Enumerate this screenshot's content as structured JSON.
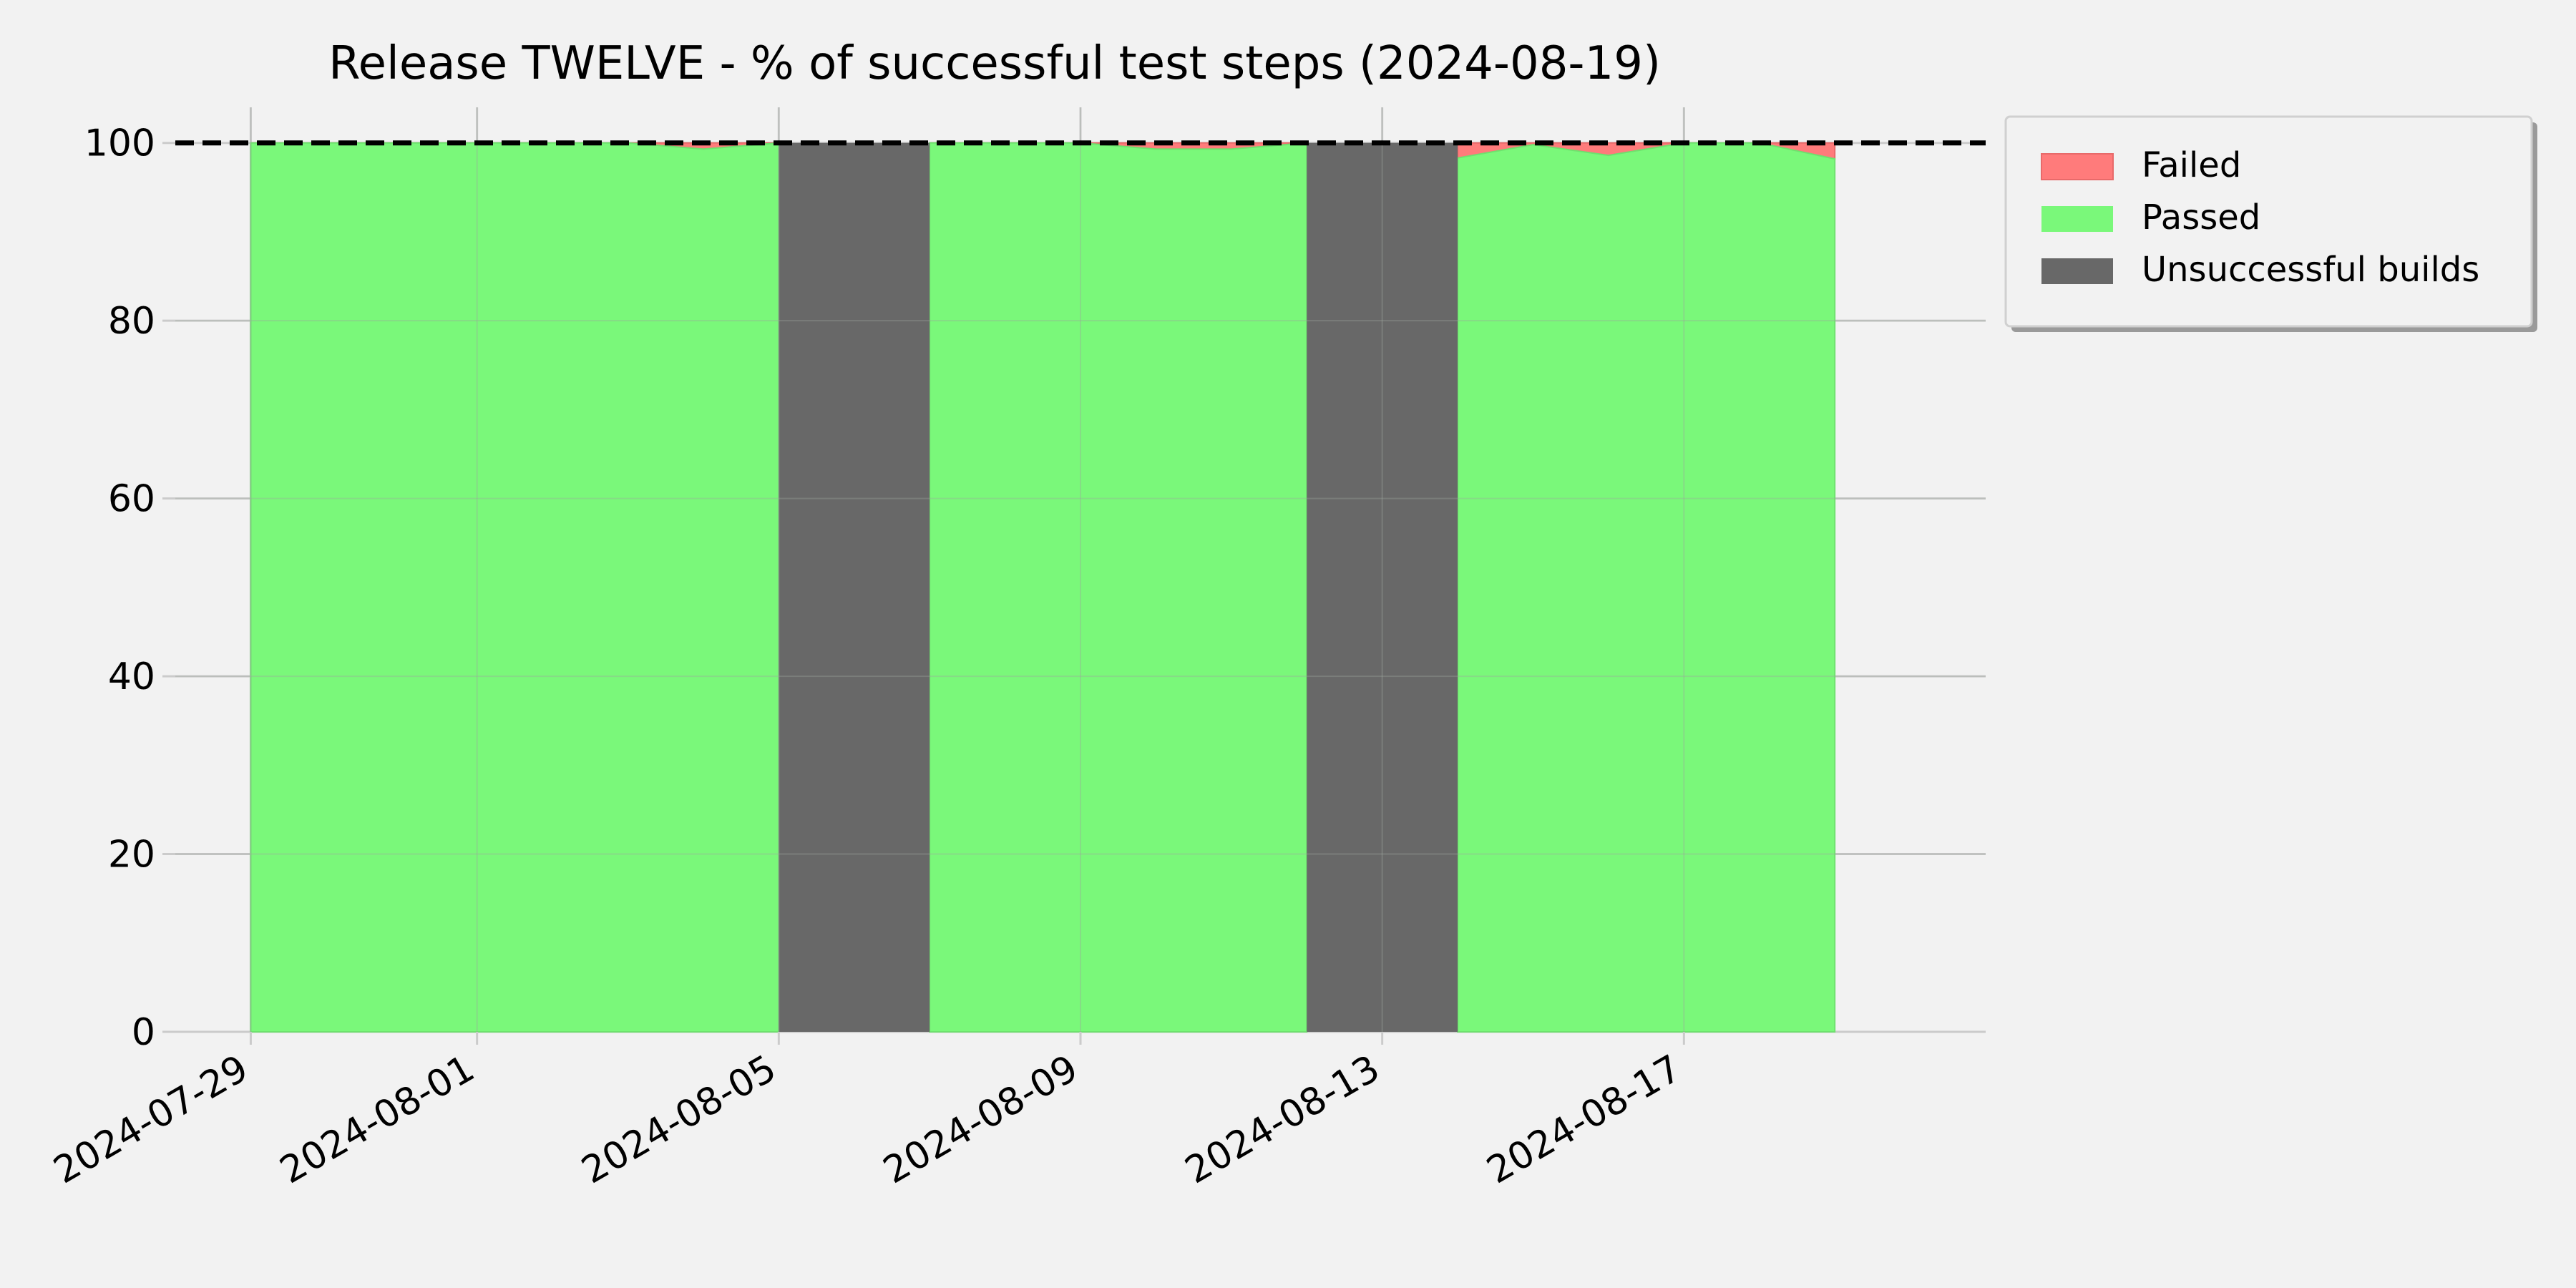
{
  "chart_data": {
    "type": "area",
    "title": "Release TWELVE - % of successful test steps (2024-08-19)",
    "xlabel": "",
    "ylabel": "",
    "x_axis": "date",
    "xlim": [
      "2024-07-28",
      "2024-08-21"
    ],
    "ylim": [
      0,
      104
    ],
    "x_ticks": [
      "2024-07-29",
      "2024-08-01",
      "2024-08-05",
      "2024-08-09",
      "2024-08-13",
      "2024-08-17"
    ],
    "y_ticks": [
      0,
      20,
      40,
      60,
      80,
      100
    ],
    "reference_line": {
      "y": 100,
      "style": "dashed",
      "color": "#000000"
    },
    "grid": true,
    "legend": {
      "placement": "outside-top-right",
      "entries": [
        {
          "label": "Failed",
          "color": "#ff7b7b"
        },
        {
          "label": "Passed",
          "color": "#7af87a"
        },
        {
          "label": "Unsuccessful builds",
          "color": "#686868"
        }
      ]
    },
    "passed_series": [
      {
        "x": "2024-07-29",
        "y": 100
      },
      {
        "x": "2024-07-30",
        "y": 100
      },
      {
        "x": "2024-07-31",
        "y": 100
      },
      {
        "x": "2024-08-01",
        "y": 100
      },
      {
        "x": "2024-08-02",
        "y": 100
      },
      {
        "x": "2024-08-03",
        "y": 100
      },
      {
        "x": "2024-08-04",
        "y": 99.3
      },
      {
        "x": "2024-08-05",
        "y": 100
      },
      {
        "x": "2024-08-07",
        "y": 100
      },
      {
        "x": "2024-08-08",
        "y": 100
      },
      {
        "x": "2024-08-09",
        "y": 100
      },
      {
        "x": "2024-08-10",
        "y": 99.3
      },
      {
        "x": "2024-08-11",
        "y": 99.3
      },
      {
        "x": "2024-08-12",
        "y": 100
      },
      {
        "x": "2024-08-14",
        "y": 98.3
      },
      {
        "x": "2024-08-15",
        "y": 99.8
      },
      {
        "x": "2024-08-16",
        "y": 98.6
      },
      {
        "x": "2024-08-17",
        "y": 100
      },
      {
        "x": "2024-08-18",
        "y": 100
      },
      {
        "x": "2024-08-19",
        "y": 98.2
      }
    ],
    "unsuccessful_builds": [
      {
        "start": "2024-08-05",
        "end": "2024-08-07",
        "value": 100
      },
      {
        "start": "2024-08-12",
        "end": "2024-08-14",
        "value": 100
      }
    ],
    "colors": {
      "background": "#f2f2f2",
      "grid": "#cbcbcb",
      "failed": "#ff7b7b",
      "passed": "#7af87a",
      "unsuccessful": "#686868"
    }
  }
}
